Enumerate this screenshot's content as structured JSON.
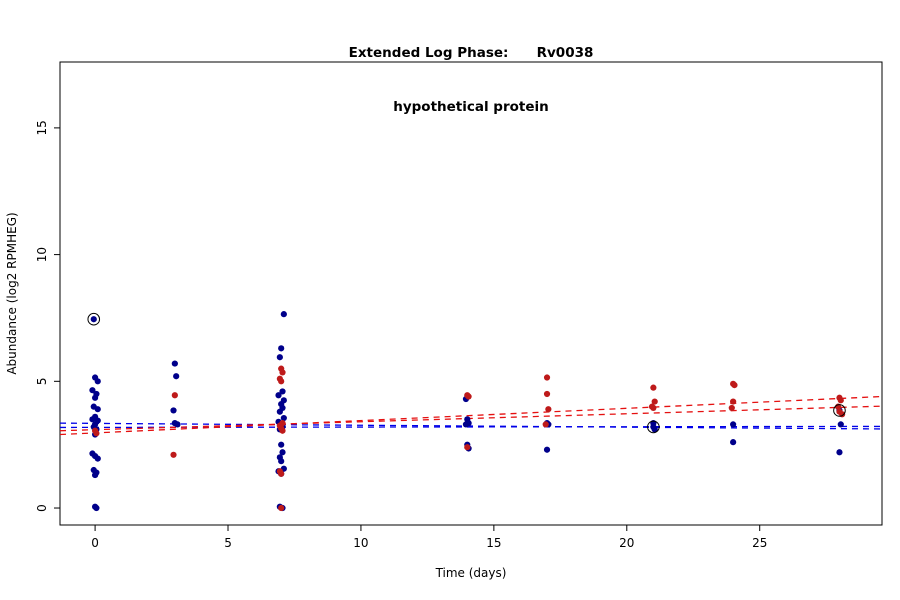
{
  "title": {
    "line1": "Extended Log Phase:      Rv0038",
    "line2": "hypothetical protein"
  },
  "chart_data": {
    "type": "scatter",
    "title": "Extended Log Phase: Rv0038 hypothetical protein",
    "xlabel": "Time  (days)",
    "ylabel": "Abundance  (log2 RPMHEG)",
    "x_ticks": [
      0,
      5,
      10,
      15,
      20,
      25
    ],
    "y_ticks": [
      0,
      5,
      10,
      15
    ],
    "xlim": [
      -1.32,
      29.6
    ],
    "ylim": [
      -0.67,
      17.6
    ],
    "grid": false,
    "legend": "none",
    "colors": {
      "blue": "#00008B",
      "red": "#BE1A1A",
      "blue_line": "#0000E8",
      "red_line": "#E51010",
      "highlight_ring": "#000000"
    },
    "series": [
      {
        "name": "blue-points",
        "color": "blue",
        "points": [
          [
            -0.05,
            7.45
          ],
          [
            0,
            5.15
          ],
          [
            0.1,
            5.0
          ],
          [
            -0.1,
            4.65
          ],
          [
            0.05,
            4.5
          ],
          [
            0,
            4.35
          ],
          [
            -0.05,
            4.0
          ],
          [
            0.1,
            3.9
          ],
          [
            0,
            3.6
          ],
          [
            -0.1,
            3.5
          ],
          [
            0.1,
            3.45
          ],
          [
            0,
            3.3
          ],
          [
            -0.05,
            3.2
          ],
          [
            0.05,
            3.1
          ],
          [
            0,
            2.9
          ],
          [
            -0.1,
            2.15
          ],
          [
            0,
            2.05
          ],
          [
            0.1,
            1.95
          ],
          [
            -0.05,
            1.5
          ],
          [
            0.05,
            1.4
          ],
          [
            0,
            1.3
          ],
          [
            0,
            0.05
          ],
          [
            0.05,
            0
          ],
          [
            3,
            5.7
          ],
          [
            3.05,
            5.2
          ],
          [
            2.95,
            3.85
          ],
          [
            3,
            3.35
          ],
          [
            3.1,
            3.3
          ],
          [
            7.1,
            7.65
          ],
          [
            7,
            6.3
          ],
          [
            6.95,
            5.95
          ],
          [
            7.05,
            4.6
          ],
          [
            6.9,
            4.45
          ],
          [
            7.1,
            4.25
          ],
          [
            7,
            4.1
          ],
          [
            7.05,
            3.95
          ],
          [
            6.95,
            3.8
          ],
          [
            7.1,
            3.55
          ],
          [
            6.9,
            3.4
          ],
          [
            7,
            3.3
          ],
          [
            7.05,
            3.2
          ],
          [
            6.95,
            3.1
          ],
          [
            7,
            2.5
          ],
          [
            7.05,
            2.2
          ],
          [
            6.95,
            2.0
          ],
          [
            7,
            1.85
          ],
          [
            7.1,
            1.55
          ],
          [
            6.9,
            1.45
          ],
          [
            7,
            1.35
          ],
          [
            6.95,
            0.05
          ],
          [
            7.05,
            0
          ],
          [
            13.95,
            4.3
          ],
          [
            14,
            3.5
          ],
          [
            14.05,
            3.35
          ],
          [
            13.95,
            3.3
          ],
          [
            14,
            2.5
          ],
          [
            14.05,
            2.35
          ],
          [
            17,
            3.35
          ],
          [
            17.05,
            3.3
          ],
          [
            17,
            2.3
          ],
          [
            21,
            3.35
          ],
          [
            21,
            3.2
          ],
          [
            21.05,
            3.1
          ],
          [
            24,
            3.3
          ],
          [
            24,
            2.6
          ],
          [
            28,
            3.85
          ],
          [
            28.05,
            3.3
          ],
          [
            28,
            2.2
          ]
        ]
      },
      {
        "name": "red-points",
        "color": "red",
        "points": [
          [
            0,
            3.05
          ],
          [
            0.05,
            2.95
          ],
          [
            3,
            4.45
          ],
          [
            2.95,
            2.1
          ],
          [
            7,
            5.5
          ],
          [
            7.05,
            5.35
          ],
          [
            6.95,
            5.1
          ],
          [
            7,
            5.0
          ],
          [
            7.05,
            3.35
          ],
          [
            6.95,
            3.25
          ],
          [
            7,
            3.15
          ],
          [
            7.05,
            3.05
          ],
          [
            6.95,
            1.45
          ],
          [
            7,
            1.35
          ],
          [
            7,
            0
          ],
          [
            14,
            4.45
          ],
          [
            14.05,
            4.4
          ],
          [
            14,
            2.4
          ],
          [
            17,
            5.15
          ],
          [
            17,
            4.5
          ],
          [
            17.05,
            3.9
          ],
          [
            16.95,
            3.3
          ],
          [
            21,
            4.75
          ],
          [
            21.05,
            4.2
          ],
          [
            20.95,
            4.0
          ],
          [
            21,
            3.95
          ],
          [
            24,
            4.9
          ],
          [
            24.05,
            4.85
          ],
          [
            24,
            4.2
          ],
          [
            23.95,
            3.95
          ],
          [
            28,
            4.35
          ],
          [
            28.05,
            4.25
          ],
          [
            27.95,
            4.0
          ],
          [
            28,
            3.8
          ],
          [
            28.1,
            3.7
          ]
        ]
      }
    ],
    "highlighted_points": [
      [
        -0.05,
        7.45
      ],
      [
        21,
        3.2
      ],
      [
        28,
        3.85
      ]
    ],
    "fit_lines": [
      {
        "name": "blue-fit-1",
        "color": "blue_line",
        "x": [
          -1.32,
          29.6
        ],
        "y": [
          3.35,
          3.12
        ]
      },
      {
        "name": "blue-fit-2",
        "color": "blue_line",
        "x": [
          -1.32,
          29.6
        ],
        "y": [
          3.18,
          3.22
        ]
      },
      {
        "name": "red-fit-1",
        "color": "red_line",
        "x": [
          -1.32,
          29.6
        ],
        "y": [
          2.9,
          4.4
        ]
      },
      {
        "name": "red-fit-2",
        "color": "red_line",
        "x": [
          -1.32,
          29.6
        ],
        "y": [
          3.05,
          4.02
        ]
      }
    ]
  }
}
